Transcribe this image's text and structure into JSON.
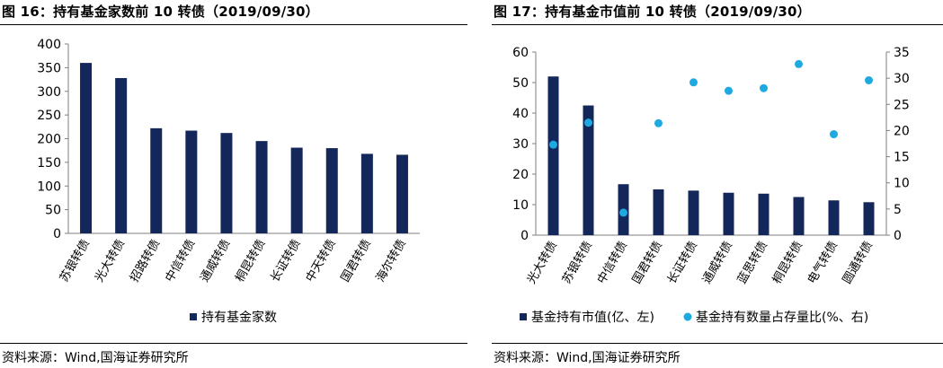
{
  "fig16": {
    "title": "图 16：持有基金家数前 10 转债（2019/09/30）",
    "source": "资料来源：Wind,国海证券研究所"
  },
  "fig17": {
    "title": "图 17：持有基金市值前 10 转债（2019/09/30）",
    "source": "资料来源：Wind,国海证券研究所"
  },
  "colors": {
    "bar": "#14275a",
    "dot": "#1fa9e1"
  },
  "chart_data": [
    {
      "type": "bar",
      "categories": [
        "苏银转债",
        "光大转债",
        "招路转债",
        "中信转债",
        "通威转债",
        "桐昆转债",
        "长证转债",
        "中天转债",
        "国君转债",
        "海尔转债"
      ],
      "series": [
        {
          "name": "持有基金家数",
          "values": [
            360,
            328,
            222,
            217,
            212,
            195,
            181,
            180,
            168,
            166
          ]
        }
      ],
      "ylim": [
        0,
        400
      ],
      "yticks": [
        0,
        50,
        100,
        150,
        200,
        250,
        300,
        350,
        400
      ],
      "legend": "bottom"
    },
    {
      "type": "bar+scatter",
      "categories": [
        "光大转债",
        "苏银转债",
        "中信转债",
        "国君转债",
        "长证转债",
        "通威转债",
        "蓝思转债",
        "桐昆转债",
        "电气转债",
        "圆通转债"
      ],
      "series": [
        {
          "name": "基金持有市值(亿、左)",
          "type": "bar",
          "axis": "left",
          "values": [
            52.0,
            42.5,
            16.7,
            15.0,
            14.6,
            13.9,
            13.6,
            12.5,
            11.4,
            10.8
          ]
        },
        {
          "name": "基金持有数量占存量比(%、右)",
          "type": "scatter",
          "axis": "right",
          "values": [
            17.3,
            21.5,
            4.3,
            21.4,
            29.2,
            27.6,
            28.1,
            32.7,
            19.3,
            29.6
          ]
        }
      ],
      "ylim_left": [
        0,
        60
      ],
      "yticks_left": [
        0,
        10,
        20,
        30,
        40,
        50,
        60
      ],
      "ylim_right": [
        0,
        35
      ],
      "yticks_right": [
        0,
        5,
        10,
        15,
        20,
        25,
        30,
        35
      ],
      "legend": "bottom"
    }
  ]
}
